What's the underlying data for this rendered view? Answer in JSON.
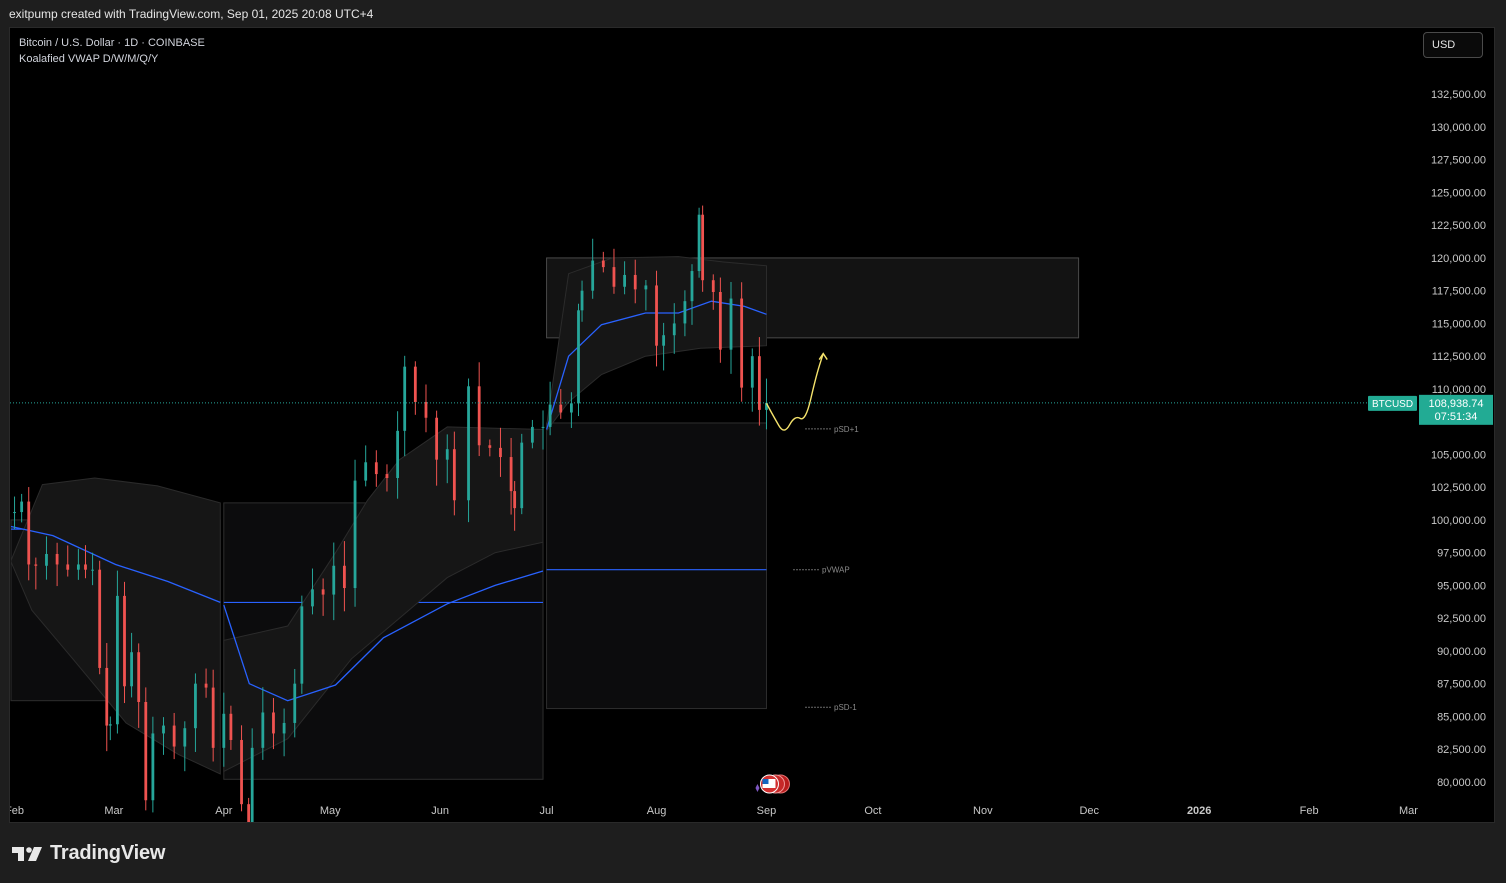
{
  "header": {
    "credit": "exitpump created with TradingView.com, Sep 01, 2025 20:08 UTC+4"
  },
  "legend": {
    "symbol": "Bitcoin / U.S. Dollar · 1D · COINBASE",
    "indicator": "Koalafied VWAP D/W/M/Q/Y"
  },
  "currency_button": "USD",
  "footer": {
    "brand": "TradingView"
  },
  "price_tag": {
    "ticker": "BTCUSD",
    "price": "108,938.74",
    "countdown": "07:51:34"
  },
  "annotations": {
    "psd_plus": "pSD+1",
    "pvwap": "pVWAP",
    "psd_minus": "pSD-1"
  },
  "colors": {
    "up": "#26a69a",
    "down": "#ef5350",
    "vwap": "#2962ff",
    "band_fill": "#161616",
    "price_tag": "#22ab94",
    "projection": "#f5e36c"
  },
  "chart_data": {
    "type": "candlestick",
    "y_axis": {
      "min": 79000,
      "max": 134500,
      "tick_labels": [
        "132,500.00",
        "130,000.00",
        "127,500.00",
        "125,000.00",
        "122,500.00",
        "120,000.00",
        "117,500.00",
        "115,000.00",
        "112,500.00",
        "110,000.00",
        "105,000.00",
        "102,500.00",
        "100,000.00",
        "97,500.00",
        "95,000.00",
        "92,500.00",
        "90,000.00",
        "87,500.00",
        "85,000.00",
        "82,500.00",
        "80,000.00"
      ]
    },
    "x_axis": {
      "start": "2025-01-31",
      "end": "2026-03-02",
      "tick_labels": [
        "Feb",
        "Mar",
        "Apr",
        "May",
        "Jun",
        "Jul",
        "Aug",
        "Sep",
        "Oct",
        "Nov",
        "Dec",
        "2026",
        "Feb",
        "Mar"
      ],
      "tick_dates": [
        "2025-02-01",
        "2025-03-01",
        "2025-04-01",
        "2025-05-01",
        "2025-06-01",
        "2025-07-01",
        "2025-08-01",
        "2025-09-01",
        "2025-10-01",
        "2025-11-01",
        "2025-12-01",
        "2026-01-01",
        "2026-02-01",
        "2026-03-01"
      ]
    },
    "last_price": 108938.74,
    "closes": [
      {
        "d": "2025-02-01",
        "c": 100600
      },
      {
        "d": "2025-02-03",
        "c": 101400
      },
      {
        "d": "2025-02-05",
        "c": 96600
      },
      {
        "d": "2025-02-07",
        "c": 96500
      },
      {
        "d": "2025-02-10",
        "c": 97400
      },
      {
        "d": "2025-02-13",
        "c": 96600
      },
      {
        "d": "2025-02-16",
        "c": 96200
      },
      {
        "d": "2025-02-19",
        "c": 96600
      },
      {
        "d": "2025-02-21",
        "c": 96200
      },
      {
        "d": "2025-02-23",
        "c": 96200
      },
      {
        "d": "2025-02-25",
        "c": 88700
      },
      {
        "d": "2025-02-27",
        "c": 84300
      },
      {
        "d": "2025-02-28",
        "c": 84400
      },
      {
        "d": "2025-03-02",
        "c": 94200
      },
      {
        "d": "2025-03-04",
        "c": 87300
      },
      {
        "d": "2025-03-06",
        "c": 89900
      },
      {
        "d": "2025-03-08",
        "c": 86100
      },
      {
        "d": "2025-03-10",
        "c": 78600
      },
      {
        "d": "2025-03-12",
        "c": 83700
      },
      {
        "d": "2025-03-15",
        "c": 84300
      },
      {
        "d": "2025-03-18",
        "c": 82700
      },
      {
        "d": "2025-03-21",
        "c": 84100
      },
      {
        "d": "2025-03-24",
        "c": 87500
      },
      {
        "d": "2025-03-27",
        "c": 87200
      },
      {
        "d": "2025-03-29",
        "c": 82600
      },
      {
        "d": "2025-04-01",
        "c": 85200
      },
      {
        "d": "2025-04-03",
        "c": 83200
      },
      {
        "d": "2025-04-06",
        "c": 78300
      },
      {
        "d": "2025-04-08",
        "c": 76300
      },
      {
        "d": "2025-04-09",
        "c": 82600
      },
      {
        "d": "2025-04-12",
        "c": 85300
      },
      {
        "d": "2025-04-15",
        "c": 83700
      },
      {
        "d": "2025-04-18",
        "c": 84500
      },
      {
        "d": "2025-04-21",
        "c": 87500
      },
      {
        "d": "2025-04-23",
        "c": 93400
      },
      {
        "d": "2025-04-26",
        "c": 94700
      },
      {
        "d": "2025-04-29",
        "c": 94300
      },
      {
        "d": "2025-05-02",
        "c": 96500
      },
      {
        "d": "2025-05-05",
        "c": 94800
      },
      {
        "d": "2025-05-08",
        "c": 103000
      },
      {
        "d": "2025-05-11",
        "c": 104400
      },
      {
        "d": "2025-05-14",
        "c": 103500
      },
      {
        "d": "2025-05-17",
        "c": 103200
      },
      {
        "d": "2025-05-20",
        "c": 106800
      },
      {
        "d": "2025-05-22",
        "c": 111700
      },
      {
        "d": "2025-05-25",
        "c": 109000
      },
      {
        "d": "2025-05-28",
        "c": 107800
      },
      {
        "d": "2025-05-31",
        "c": 104600
      },
      {
        "d": "2025-06-03",
        "c": 105400
      },
      {
        "d": "2025-06-05",
        "c": 101500
      },
      {
        "d": "2025-06-09",
        "c": 110200
      },
      {
        "d": "2025-06-12",
        "c": 105700
      },
      {
        "d": "2025-06-15",
        "c": 105500
      },
      {
        "d": "2025-06-18",
        "c": 104800
      },
      {
        "d": "2025-06-21",
        "c": 102200
      },
      {
        "d": "2025-06-22",
        "c": 100900
      },
      {
        "d": "2025-06-24",
        "c": 105900
      },
      {
        "d": "2025-06-27",
        "c": 107100
      },
      {
        "d": "2025-06-30",
        "c": 107100
      },
      {
        "d": "2025-07-02",
        "c": 108800
      },
      {
        "d": "2025-07-05",
        "c": 108200
      },
      {
        "d": "2025-07-08",
        "c": 108900
      },
      {
        "d": "2025-07-10",
        "c": 116000
      },
      {
        "d": "2025-07-11",
        "c": 117500
      },
      {
        "d": "2025-07-14",
        "c": 119800
      },
      {
        "d": "2025-07-17",
        "c": 119300
      },
      {
        "d": "2025-07-20",
        "c": 117800
      },
      {
        "d": "2025-07-23",
        "c": 118700
      },
      {
        "d": "2025-07-26",
        "c": 117600
      },
      {
        "d": "2025-07-29",
        "c": 117900
      },
      {
        "d": "2025-08-01",
        "c": 113300
      },
      {
        "d": "2025-08-03",
        "c": 114100
      },
      {
        "d": "2025-08-06",
        "c": 115000
      },
      {
        "d": "2025-08-09",
        "c": 116700
      },
      {
        "d": "2025-08-11",
        "c": 119000
      },
      {
        "d": "2025-08-13",
        "c": 123300
      },
      {
        "d": "2025-08-14",
        "c": 118300
      },
      {
        "d": "2025-08-17",
        "c": 117400
      },
      {
        "d": "2025-08-19",
        "c": 113000
      },
      {
        "d": "2025-08-22",
        "c": 116900
      },
      {
        "d": "2025-08-25",
        "c": 110100
      },
      {
        "d": "2025-08-28",
        "c": 112500
      },
      {
        "d": "2025-08-30",
        "c": 108400
      },
      {
        "d": "2025-09-01",
        "c": 108939
      }
    ],
    "vwap_segments": [
      {
        "from": "2025-01-31",
        "to": "2025-03-31",
        "vwap": [
          [
            0,
            99500
          ],
          [
            0.2,
            98800
          ],
          [
            0.5,
            96600
          ],
          [
            0.75,
            95300
          ],
          [
            1,
            93700
          ]
        ],
        "upper": [
          [
            0,
            96900
          ],
          [
            0.15,
            102700
          ],
          [
            0.4,
            103200
          ],
          [
            0.7,
            102600
          ],
          [
            1,
            101300
          ]
        ],
        "lower": [
          [
            0,
            96800
          ],
          [
            0.1,
            93100
          ],
          [
            0.3,
            89300
          ],
          [
            0.55,
            84500
          ],
          [
            0.8,
            82100
          ],
          [
            1,
            80600
          ]
        ]
      },
      {
        "from": "2025-04-01",
        "to": "2025-06-30",
        "vwap": [
          [
            0,
            93500
          ],
          [
            0.08,
            87500
          ],
          [
            0.2,
            86200
          ],
          [
            0.35,
            87400
          ],
          [
            0.5,
            91000
          ],
          [
            0.7,
            93600
          ],
          [
            0.85,
            95000
          ],
          [
            1,
            96100
          ]
        ],
        "upper": [
          [
            0,
            90800
          ],
          [
            0.2,
            91900
          ],
          [
            0.35,
            97500
          ],
          [
            0.45,
            101500
          ],
          [
            0.55,
            104600
          ],
          [
            0.7,
            107100
          ],
          [
            1,
            106900
          ]
        ],
        "lower": [
          [
            0,
            80800
          ],
          [
            0.2,
            83300
          ],
          [
            0.4,
            89400
          ],
          [
            0.55,
            92500
          ],
          [
            0.7,
            95600
          ],
          [
            0.85,
            97500
          ],
          [
            1,
            98300
          ]
        ]
      },
      {
        "from": "2025-07-01",
        "to": "2025-09-01",
        "vwap": [
          [
            0,
            106900
          ],
          [
            0.1,
            112500
          ],
          [
            0.25,
            114900
          ],
          [
            0.45,
            115800
          ],
          [
            0.6,
            115800
          ],
          [
            0.75,
            116700
          ],
          [
            0.9,
            116300
          ],
          [
            1,
            115700
          ]
        ],
        "upper": [
          [
            0,
            107200
          ],
          [
            0.1,
            118800
          ],
          [
            0.3,
            120000
          ],
          [
            0.6,
            120100
          ],
          [
            0.8,
            119700
          ],
          [
            1,
            119400
          ]
        ],
        "lower": [
          [
            0,
            106800
          ],
          [
            0.1,
            109000
          ],
          [
            0.25,
            111100
          ],
          [
            0.45,
            112500
          ],
          [
            0.7,
            113100
          ],
          [
            1,
            113300
          ]
        ]
      }
    ],
    "vwap_levels": [
      {
        "from": "2025-01-31",
        "to": "2025-03-31",
        "upper": 100000,
        "mid": 99300,
        "lower": 86200
      },
      {
        "from": "2025-04-01",
        "to": "2025-06-30",
        "upper": 101300,
        "mid": 93700,
        "lower": 80200
      },
      {
        "from": "2025-07-01",
        "to": "2025-09-01",
        "upper": 107400,
        "mid": 96200,
        "lower": 85600
      }
    ],
    "supply_zone": {
      "from": "2025-07-01",
      "to": "2025-11-28",
      "top": 120000,
      "bottom": 113900
    },
    "projection_path": [
      [
        "2025-09-01",
        108900
      ],
      [
        "2025-09-03",
        107900
      ],
      [
        "2025-09-06",
        106500
      ],
      [
        "2025-09-09",
        108000
      ],
      [
        "2025-09-12",
        107500
      ],
      [
        "2025-09-15",
        111000
      ],
      [
        "2025-09-17",
        112700
      ]
    ]
  }
}
